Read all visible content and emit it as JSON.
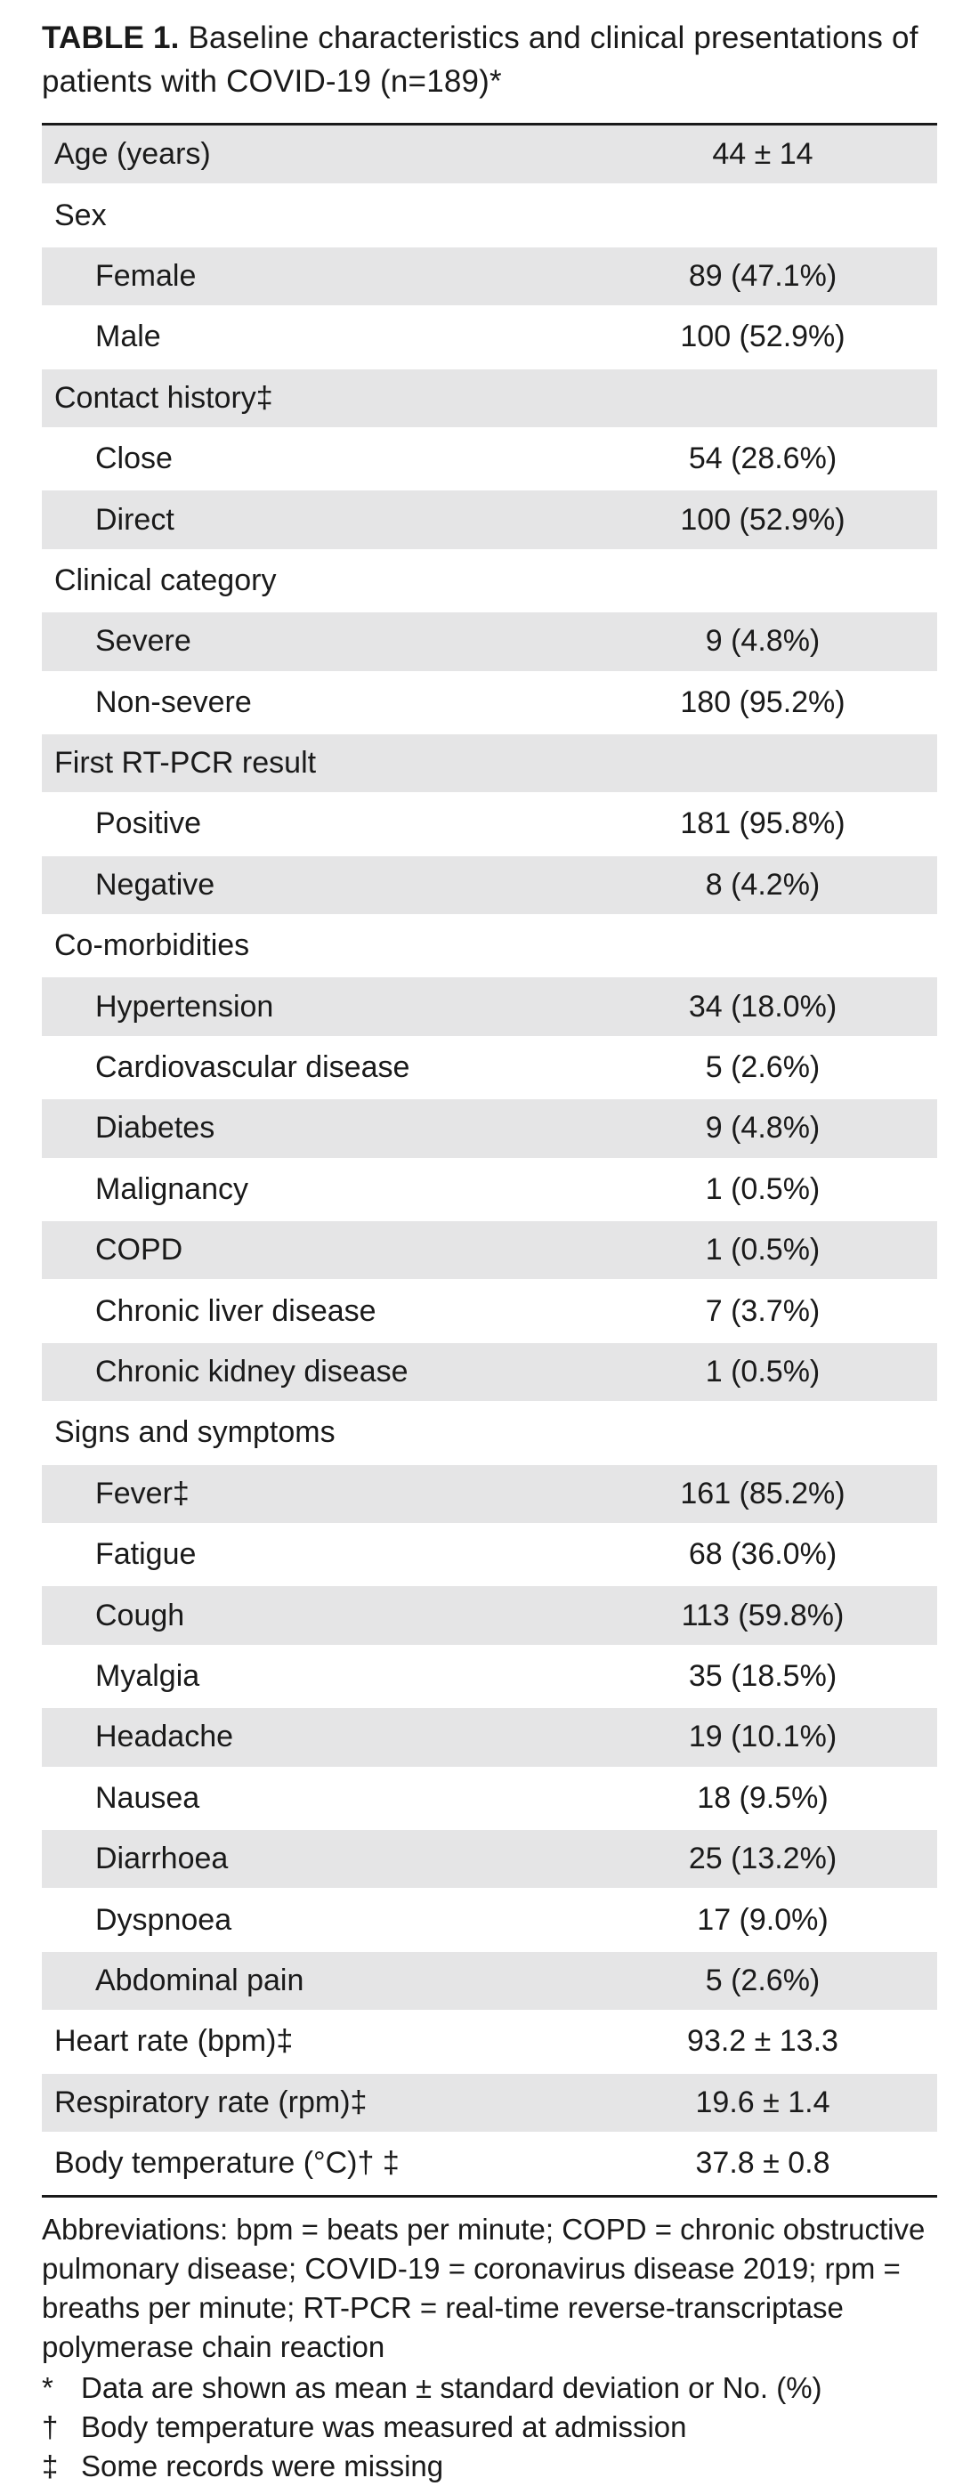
{
  "caption": {
    "label": "TABLE 1.",
    "text": "Baseline characteristics and clinical presentations of patients with COVID-19 (n=189)*"
  },
  "rows": [
    {
      "label": "Age (years)",
      "value": "44 ± 14",
      "indent": false,
      "shaded": true
    },
    {
      "label": "Sex",
      "value": "",
      "indent": false,
      "shaded": false
    },
    {
      "label": "Female",
      "value": "89 (47.1%)",
      "indent": true,
      "shaded": true
    },
    {
      "label": "Male",
      "value": "100 (52.9%)",
      "indent": true,
      "shaded": false
    },
    {
      "label": "Contact history‡",
      "value": "",
      "indent": false,
      "shaded": true
    },
    {
      "label": "Close",
      "value": "54 (28.6%)",
      "indent": true,
      "shaded": false
    },
    {
      "label": "Direct",
      "value": "100 (52.9%)",
      "indent": true,
      "shaded": true
    },
    {
      "label": "Clinical category",
      "value": "",
      "indent": false,
      "shaded": false
    },
    {
      "label": "Severe",
      "value": "9 (4.8%)",
      "indent": true,
      "shaded": true
    },
    {
      "label": "Non-severe",
      "value": "180 (95.2%)",
      "indent": true,
      "shaded": false
    },
    {
      "label": "First RT-PCR result",
      "value": "",
      "indent": false,
      "shaded": true
    },
    {
      "label": "Positive",
      "value": "181 (95.8%)",
      "indent": true,
      "shaded": false
    },
    {
      "label": "Negative",
      "value": "8 (4.2%)",
      "indent": true,
      "shaded": true
    },
    {
      "label": "Co-morbidities",
      "value": "",
      "indent": false,
      "shaded": false
    },
    {
      "label": "Hypertension",
      "value": "34 (18.0%)",
      "indent": true,
      "shaded": true
    },
    {
      "label": "Cardiovascular disease",
      "value": "5 (2.6%)",
      "indent": true,
      "shaded": false
    },
    {
      "label": "Diabetes",
      "value": "9 (4.8%)",
      "indent": true,
      "shaded": true
    },
    {
      "label": "Malignancy",
      "value": "1 (0.5%)",
      "indent": true,
      "shaded": false
    },
    {
      "label": "COPD",
      "value": "1 (0.5%)",
      "indent": true,
      "shaded": true
    },
    {
      "label": "Chronic liver disease",
      "value": "7 (3.7%)",
      "indent": true,
      "shaded": false
    },
    {
      "label": "Chronic kidney disease",
      "value": "1 (0.5%)",
      "indent": true,
      "shaded": true
    },
    {
      "label": "Signs and symptoms",
      "value": "",
      "indent": false,
      "shaded": false
    },
    {
      "label": "Fever‡",
      "value": "161 (85.2%)",
      "indent": true,
      "shaded": true
    },
    {
      "label": "Fatigue",
      "value": "68 (36.0%)",
      "indent": true,
      "shaded": false
    },
    {
      "label": "Cough",
      "value": "113 (59.8%)",
      "indent": true,
      "shaded": true
    },
    {
      "label": "Myalgia",
      "value": "35 (18.5%)",
      "indent": true,
      "shaded": false
    },
    {
      "label": "Headache",
      "value": "19 (10.1%)",
      "indent": true,
      "shaded": true
    },
    {
      "label": "Nausea",
      "value": "18 (9.5%)",
      "indent": true,
      "shaded": false
    },
    {
      "label": "Diarrhoea",
      "value": "25 (13.2%)",
      "indent": true,
      "shaded": true
    },
    {
      "label": "Dyspnoea",
      "value": "17 (9.0%)",
      "indent": true,
      "shaded": false
    },
    {
      "label": "Abdominal pain",
      "value": "5 (2.6%)",
      "indent": true,
      "shaded": true
    },
    {
      "label": "Heart rate (bpm)‡",
      "value": "93.2 ± 13.3",
      "indent": false,
      "shaded": false
    },
    {
      "label": "Respiratory rate (rpm)‡",
      "value": "19.6 ± 1.4",
      "indent": false,
      "shaded": true
    },
    {
      "label": "Body temperature (°C)† ‡",
      "value": "37.8 ± 0.8",
      "indent": false,
      "shaded": false
    }
  ],
  "footnotes": {
    "abbreviations": "Abbreviations: bpm = beats per minute; COPD = chronic obstructive pulmonary disease; COVID-19 = coronavirus disease 2019; rpm = breaths per minute; RT-PCR = real-time reverse-transcriptase polymerase chain reaction",
    "notes": [
      {
        "symbol": "*",
        "text": "Data are shown as mean ± standard deviation or No. (%)"
      },
      {
        "symbol": "†",
        "text": "Body temperature was measured at admission"
      },
      {
        "symbol": "‡",
        "text": "Some records were missing"
      }
    ]
  },
  "colors": {
    "row_shade": "#e5e5e6",
    "text": "#1a1a1a",
    "rule": "#1a1a1a"
  }
}
